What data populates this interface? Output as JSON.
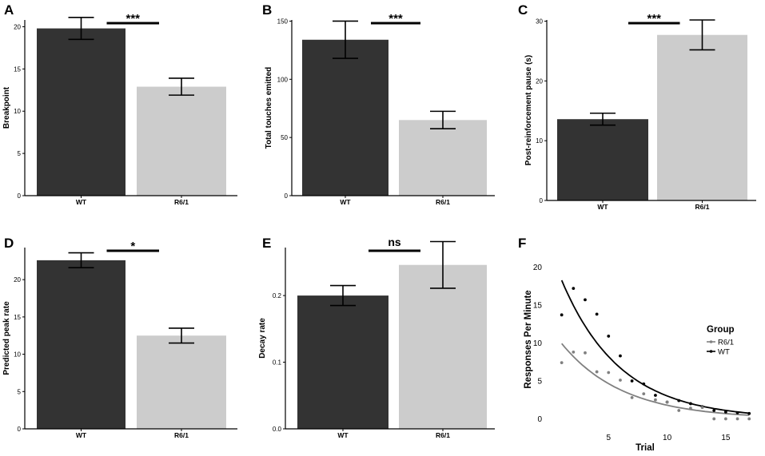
{
  "colors": {
    "wt_bar": "#333333",
    "r61_bar": "#cccccc",
    "axis": "#000000",
    "wt_line": "#000000",
    "r61_line": "#808080"
  },
  "chart_data": [
    {
      "panel": "A",
      "type": "bar",
      "ylabel": "Breakpoint",
      "categories": [
        "WT",
        "R6/1"
      ],
      "values": [
        19.8,
        12.9
      ],
      "errors": [
        1.3,
        1.0
      ],
      "ylim": [
        0,
        20.8
      ],
      "yticks": [
        0,
        5,
        10,
        15,
        20
      ],
      "significance": "***"
    },
    {
      "panel": "B",
      "type": "bar",
      "ylabel": "Total touches emitted",
      "categories": [
        "WT",
        "R6/1"
      ],
      "values": [
        134,
        65
      ],
      "errors": [
        16,
        7.5
      ],
      "ylim": [
        0,
        151
      ],
      "yticks": [
        0,
        50,
        100,
        150
      ],
      "significance": "***"
    },
    {
      "panel": "C",
      "type": "bar",
      "ylabel": "Post-reinforcement pause (s)",
      "categories": [
        "WT",
        "R6/1"
      ],
      "values": [
        13.6,
        27.7
      ],
      "errors": [
        1.0,
        2.5
      ],
      "ylim": [
        0,
        30.2
      ],
      "yticks": [
        0,
        10,
        20,
        30
      ],
      "significance": "***"
    },
    {
      "panel": "D",
      "type": "bar",
      "ylabel": "Predicted peak rate",
      "categories": [
        "WT",
        "R6/1"
      ],
      "values": [
        22.6,
        12.5
      ],
      "errors": [
        1.0,
        1.0
      ],
      "ylim": [
        0,
        24.3
      ],
      "yticks": [
        0,
        5,
        10,
        15,
        20
      ],
      "significance": "*"
    },
    {
      "panel": "E",
      "type": "bar",
      "ylabel": "Decay rate",
      "categories": [
        "WT",
        "R6/1"
      ],
      "values": [
        0.2,
        0.246
      ],
      "errors": [
        0.015,
        0.035
      ],
      "ylim": [
        0,
        0.272
      ],
      "yticks": [
        0.0,
        0.1,
        0.2
      ],
      "ytick_labels": [
        "0.0",
        "0.1",
        "0.2"
      ],
      "significance": "ns"
    },
    {
      "panel": "F",
      "type": "scatter",
      "xlabel": "Trial",
      "ylabel": "Responses Per Minute",
      "xlim": [
        0,
        17.6
      ],
      "ylim": [
        -0.9,
        21
      ],
      "xticks": [
        5,
        10,
        15
      ],
      "yticks": [
        0,
        5,
        10,
        15,
        20
      ],
      "legend": {
        "title": "Group",
        "entries": [
          "R6/1",
          "WT"
        ],
        "position": "right"
      },
      "series": [
        {
          "name": "WT",
          "x": [
            1,
            2,
            3,
            4,
            5,
            6,
            7,
            8,
            9,
            10,
            11,
            12,
            13,
            14,
            15,
            16,
            17
          ],
          "y": [
            13.7,
            17.2,
            15.7,
            13.8,
            10.9,
            8.3,
            5.0,
            4.6,
            3.1,
            2.2,
            2.4,
            2.0,
            1.6,
            1.1,
            0.9,
            0.8,
            0.7
          ],
          "fit": {
            "a": 22.3,
            "b": 0.2
          }
        },
        {
          "name": "R6/1",
          "x": [
            1,
            2,
            3,
            4,
            5,
            6,
            7,
            8,
            9,
            10,
            11,
            12,
            13,
            14,
            15,
            16,
            17
          ],
          "y": [
            7.4,
            8.8,
            8.7,
            6.2,
            6.1,
            5.1,
            2.8,
            3.3,
            2.5,
            2.2,
            1.1,
            1.4,
            1.5,
            0.0,
            0.0,
            0.0,
            0.0
          ],
          "fit": {
            "a": 12.0,
            "b": 0.19
          }
        }
      ]
    }
  ]
}
